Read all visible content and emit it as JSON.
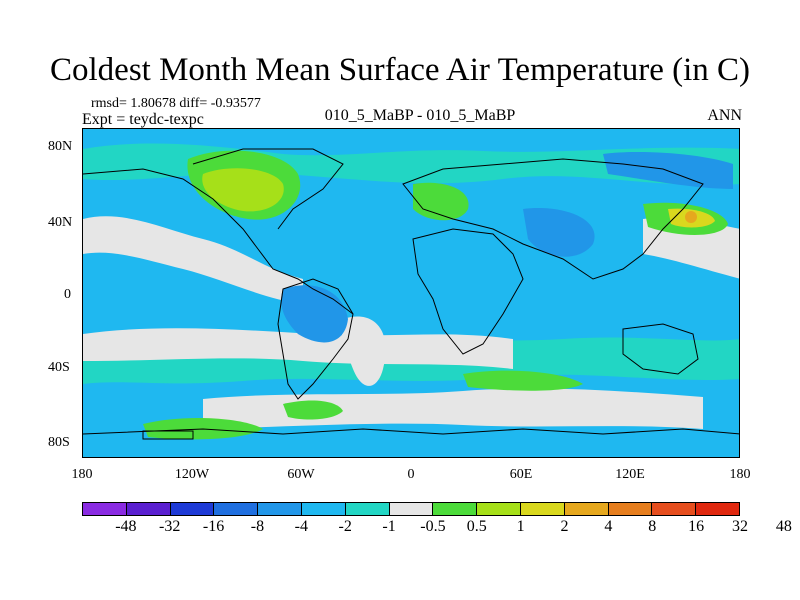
{
  "title": "Coldest Month Mean Surface Air Temperature (in C)",
  "stats": "rmsd= 1.80678 diff= -0.93577",
  "expt": "Expt = teydc-texpc",
  "center_label": "010_5_MaBP - 010_5_MaBP",
  "right_label": "ANN",
  "y_ticks": [
    "80N",
    "40N",
    "0",
    "40S",
    "80S"
  ],
  "x_ticks": [
    "180",
    "120W",
    "60W",
    "0",
    "60E",
    "120E",
    "180"
  ],
  "colorbar": {
    "colors": [
      "#8a2be2",
      "#5a1fd0",
      "#1e3ad6",
      "#1f6fe0",
      "#2196e8",
      "#1fb8f0",
      "#22d6c4",
      "#e6e6e6",
      "#4cdb3a",
      "#a6e019",
      "#d9d81e",
      "#e6a81e",
      "#e67e1e",
      "#e64e1e",
      "#e0280f"
    ],
    "labels": [
      "-48",
      "-32",
      "-16",
      "-8",
      "-4",
      "-2",
      "-1",
      "-0.5",
      "0.5",
      "1",
      "2",
      "4",
      "8",
      "16",
      "32",
      "48"
    ]
  }
}
